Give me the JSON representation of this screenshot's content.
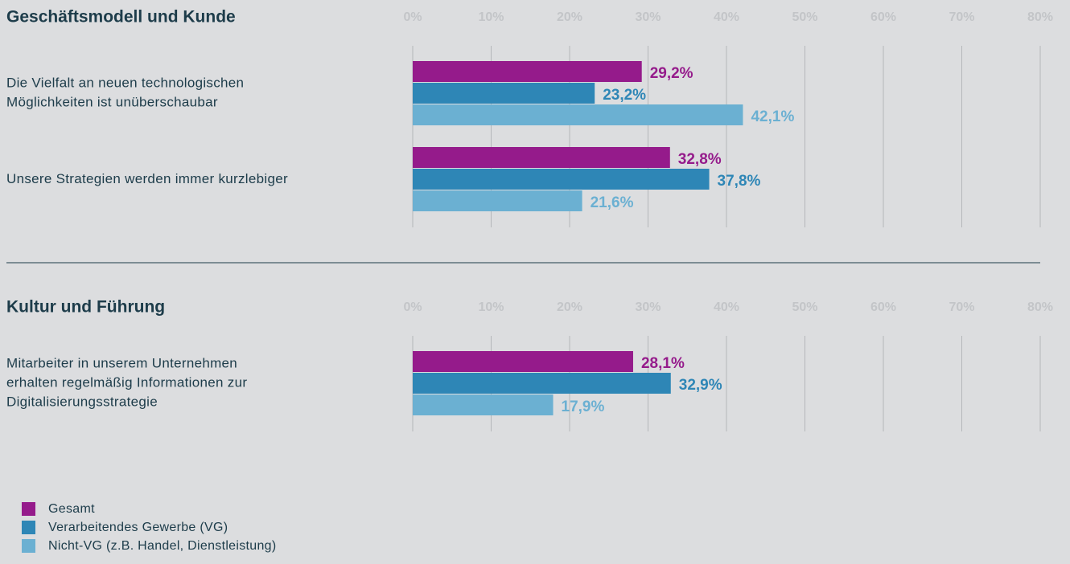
{
  "chart_data": [
    {
      "type": "hbar",
      "title": "Geschäftsmodell und Kunde",
      "categories": [
        "Die Vielfalt an neuen technologischen\nMöglichkeiten ist unüberschaubar",
        "Unsere Strategien werden immer kurzlebiger"
      ],
      "series": [
        {
          "name": "Gesamt",
          "color": "#951b8b",
          "values": [
            29.2,
            32.8
          ],
          "value_labels": [
            "29,2%",
            "32,8%"
          ]
        },
        {
          "name": "Verarbeitendes Gewerbe (VG)",
          "color": "#2e86b6",
          "values": [
            23.2,
            37.8
          ],
          "value_labels": [
            "23,2%",
            "37,8%"
          ]
        },
        {
          "name": "Nicht-VG (z.B. Handel, Dienstleistung)",
          "color": "#6bb0d2",
          "values": [
            42.1,
            21.6
          ],
          "value_labels": [
            "42,1%",
            "21,6%"
          ]
        }
      ],
      "xlim": [
        0,
        80
      ],
      "xticks": [
        {
          "value": 0,
          "label": "0%"
        },
        {
          "value": 10,
          "label": "10%"
        },
        {
          "value": 20,
          "label": "20%"
        },
        {
          "value": 30,
          "label": "30%"
        },
        {
          "value": 40,
          "label": "40%"
        },
        {
          "value": 50,
          "label": "50%"
        },
        {
          "value": 60,
          "label": "60%"
        },
        {
          "value": 70,
          "label": "70%"
        },
        {
          "value": 80,
          "label": "80%"
        }
      ],
      "grid": true,
      "legend": "bottom-left"
    },
    {
      "type": "hbar",
      "title": "Kultur und Führung",
      "categories": [
        "Mitarbeiter in unserem Unternehmen\nerhalten regelmäßig Informationen zur\nDigitalisierungsstrategie"
      ],
      "series": [
        {
          "color": "#951b8b",
          "values": [
            28.1
          ],
          "value_labels": [
            "28,1%"
          ]
        },
        {
          "color": "#2e86b6",
          "values": [
            32.9
          ],
          "value_labels": [
            "32,9%"
          ]
        },
        {
          "color": "#6bb0d2",
          "values": [
            17.9
          ],
          "value_labels": [
            "17,9%"
          ]
        }
      ],
      "xlim": [
        0,
        80
      ],
      "xticks": [
        {
          "value": 0,
          "label": "0%"
        },
        {
          "value": 10,
          "label": "10%"
        },
        {
          "value": 20,
          "label": "20%"
        },
        {
          "value": 30,
          "label": "30%"
        },
        {
          "value": 40,
          "label": "40%"
        },
        {
          "value": 50,
          "label": "50%"
        },
        {
          "value": 60,
          "label": "60%"
        },
        {
          "value": 70,
          "label": "70%"
        },
        {
          "value": 80,
          "label": "80%"
        }
      ],
      "grid": true
    }
  ]
}
